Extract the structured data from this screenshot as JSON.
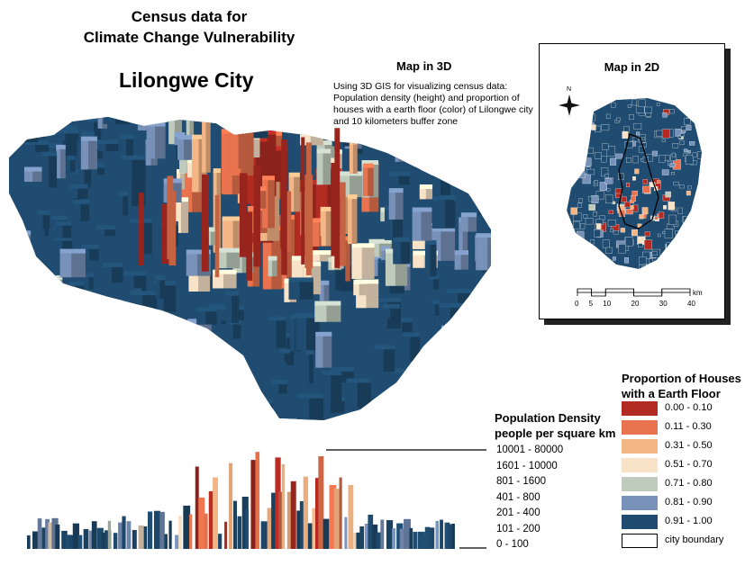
{
  "title": {
    "line1": "Census data for",
    "line2": "Climate Change Vulnerability",
    "city": "Lilongwe City"
  },
  "map3d": {
    "title": "Map in 3D",
    "description": "Using 3D GIS for visualizing census data: Population density (height) and proportion of houses with a earth floor (color) of Lilongwe city and 10 kilometers buffer zone"
  },
  "map2d": {
    "title": "Map in 2D",
    "north_label": "N",
    "scale_ticks": [
      "0",
      "5",
      "10",
      "20",
      "30",
      "40"
    ],
    "scale_unit": "km"
  },
  "density_legend": {
    "title_line1": "Population Density",
    "title_line2": "people per square km",
    "classes": [
      "10001 - 80000",
      "1601 - 10000",
      "801 - 1600",
      "401 - 800",
      "201 - 400",
      "101 - 200",
      "0 - 100"
    ]
  },
  "floor_legend": {
    "title_line1": "Proportion of Houses",
    "title_line2": "with a Earth Floor",
    "classes": [
      {
        "label": "0.00 - 0.10",
        "color": "#b22b22"
      },
      {
        "label": "0.11 - 0.30",
        "color": "#e8734e"
      },
      {
        "label": "0.31 - 0.50",
        "color": "#f5b685"
      },
      {
        "label": "0.51 - 0.70",
        "color": "#f9e3c8"
      },
      {
        "label": "0.71 - 0.80",
        "color": "#bfcbbd"
      },
      {
        "label": "0.81 - 0.90",
        "color": "#7891b9"
      },
      {
        "label": "0.91 - 1.00",
        "color": "#1f4c70"
      }
    ],
    "boundary_label": "city boundary"
  }
}
